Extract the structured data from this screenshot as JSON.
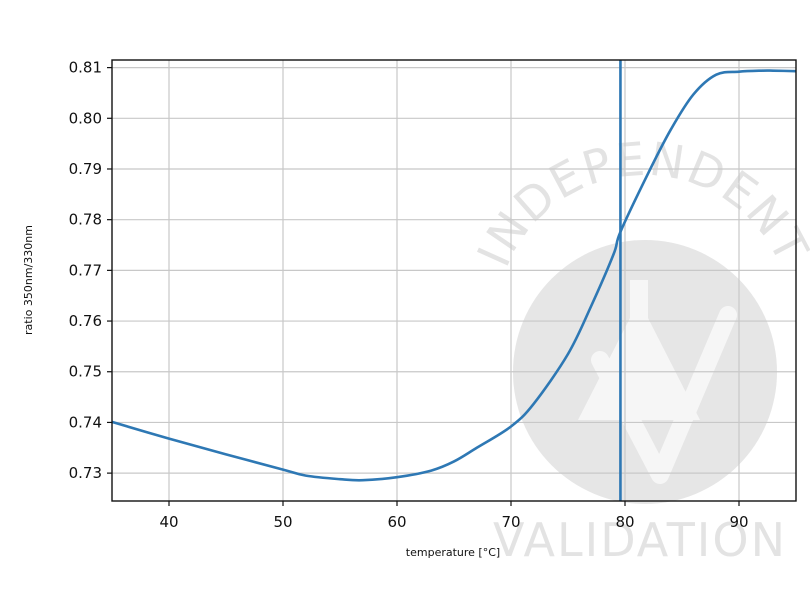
{
  "chart_data": {
    "type": "line",
    "title": "",
    "xlabel": "temperature [°C]",
    "ylabel": "ratio 350nm/330nm",
    "xlim": [
      35,
      95
    ],
    "ylim": [
      0.7245,
      0.8115
    ],
    "grid": true,
    "x_ticks": [
      40,
      50,
      60,
      70,
      80,
      90
    ],
    "y_ticks": [
      0.73,
      0.74,
      0.75,
      0.76,
      0.77,
      0.78,
      0.79,
      0.8,
      0.81
    ],
    "x_tick_labels": [
      "40",
      "50",
      "60",
      "70",
      "80",
      "90"
    ],
    "y_tick_labels": [
      "0.73",
      "0.74",
      "0.75",
      "0.76",
      "0.77",
      "0.78",
      "0.79",
      "0.80",
      "0.81"
    ],
    "series": [
      {
        "color": "#2e78b4",
        "x": [
          35,
          40,
          45,
          50,
          52,
          55,
          57,
          60,
          63,
          65,
          67,
          70,
          72,
          75,
          77,
          79,
          79.6,
          82,
          84,
          86,
          88,
          90,
          92,
          93,
          95
        ],
        "y": [
          0.7401,
          0.7368,
          0.7337,
          0.7307,
          0.7295,
          0.7288,
          0.7286,
          0.7292,
          0.7305,
          0.7323,
          0.735,
          0.7392,
          0.7437,
          0.7535,
          0.7628,
          0.7732,
          0.7776,
          0.789,
          0.7977,
          0.8047,
          0.8086,
          0.8092,
          0.8094,
          0.8094,
          0.8093
        ]
      }
    ],
    "vlines": [
      {
        "x": 79.6,
        "color": "#2e78b4"
      }
    ]
  },
  "watermark": {
    "top_text": "INDEPENDENT",
    "bottom_text": "VALIDATION",
    "color": "#e3e3e3"
  }
}
